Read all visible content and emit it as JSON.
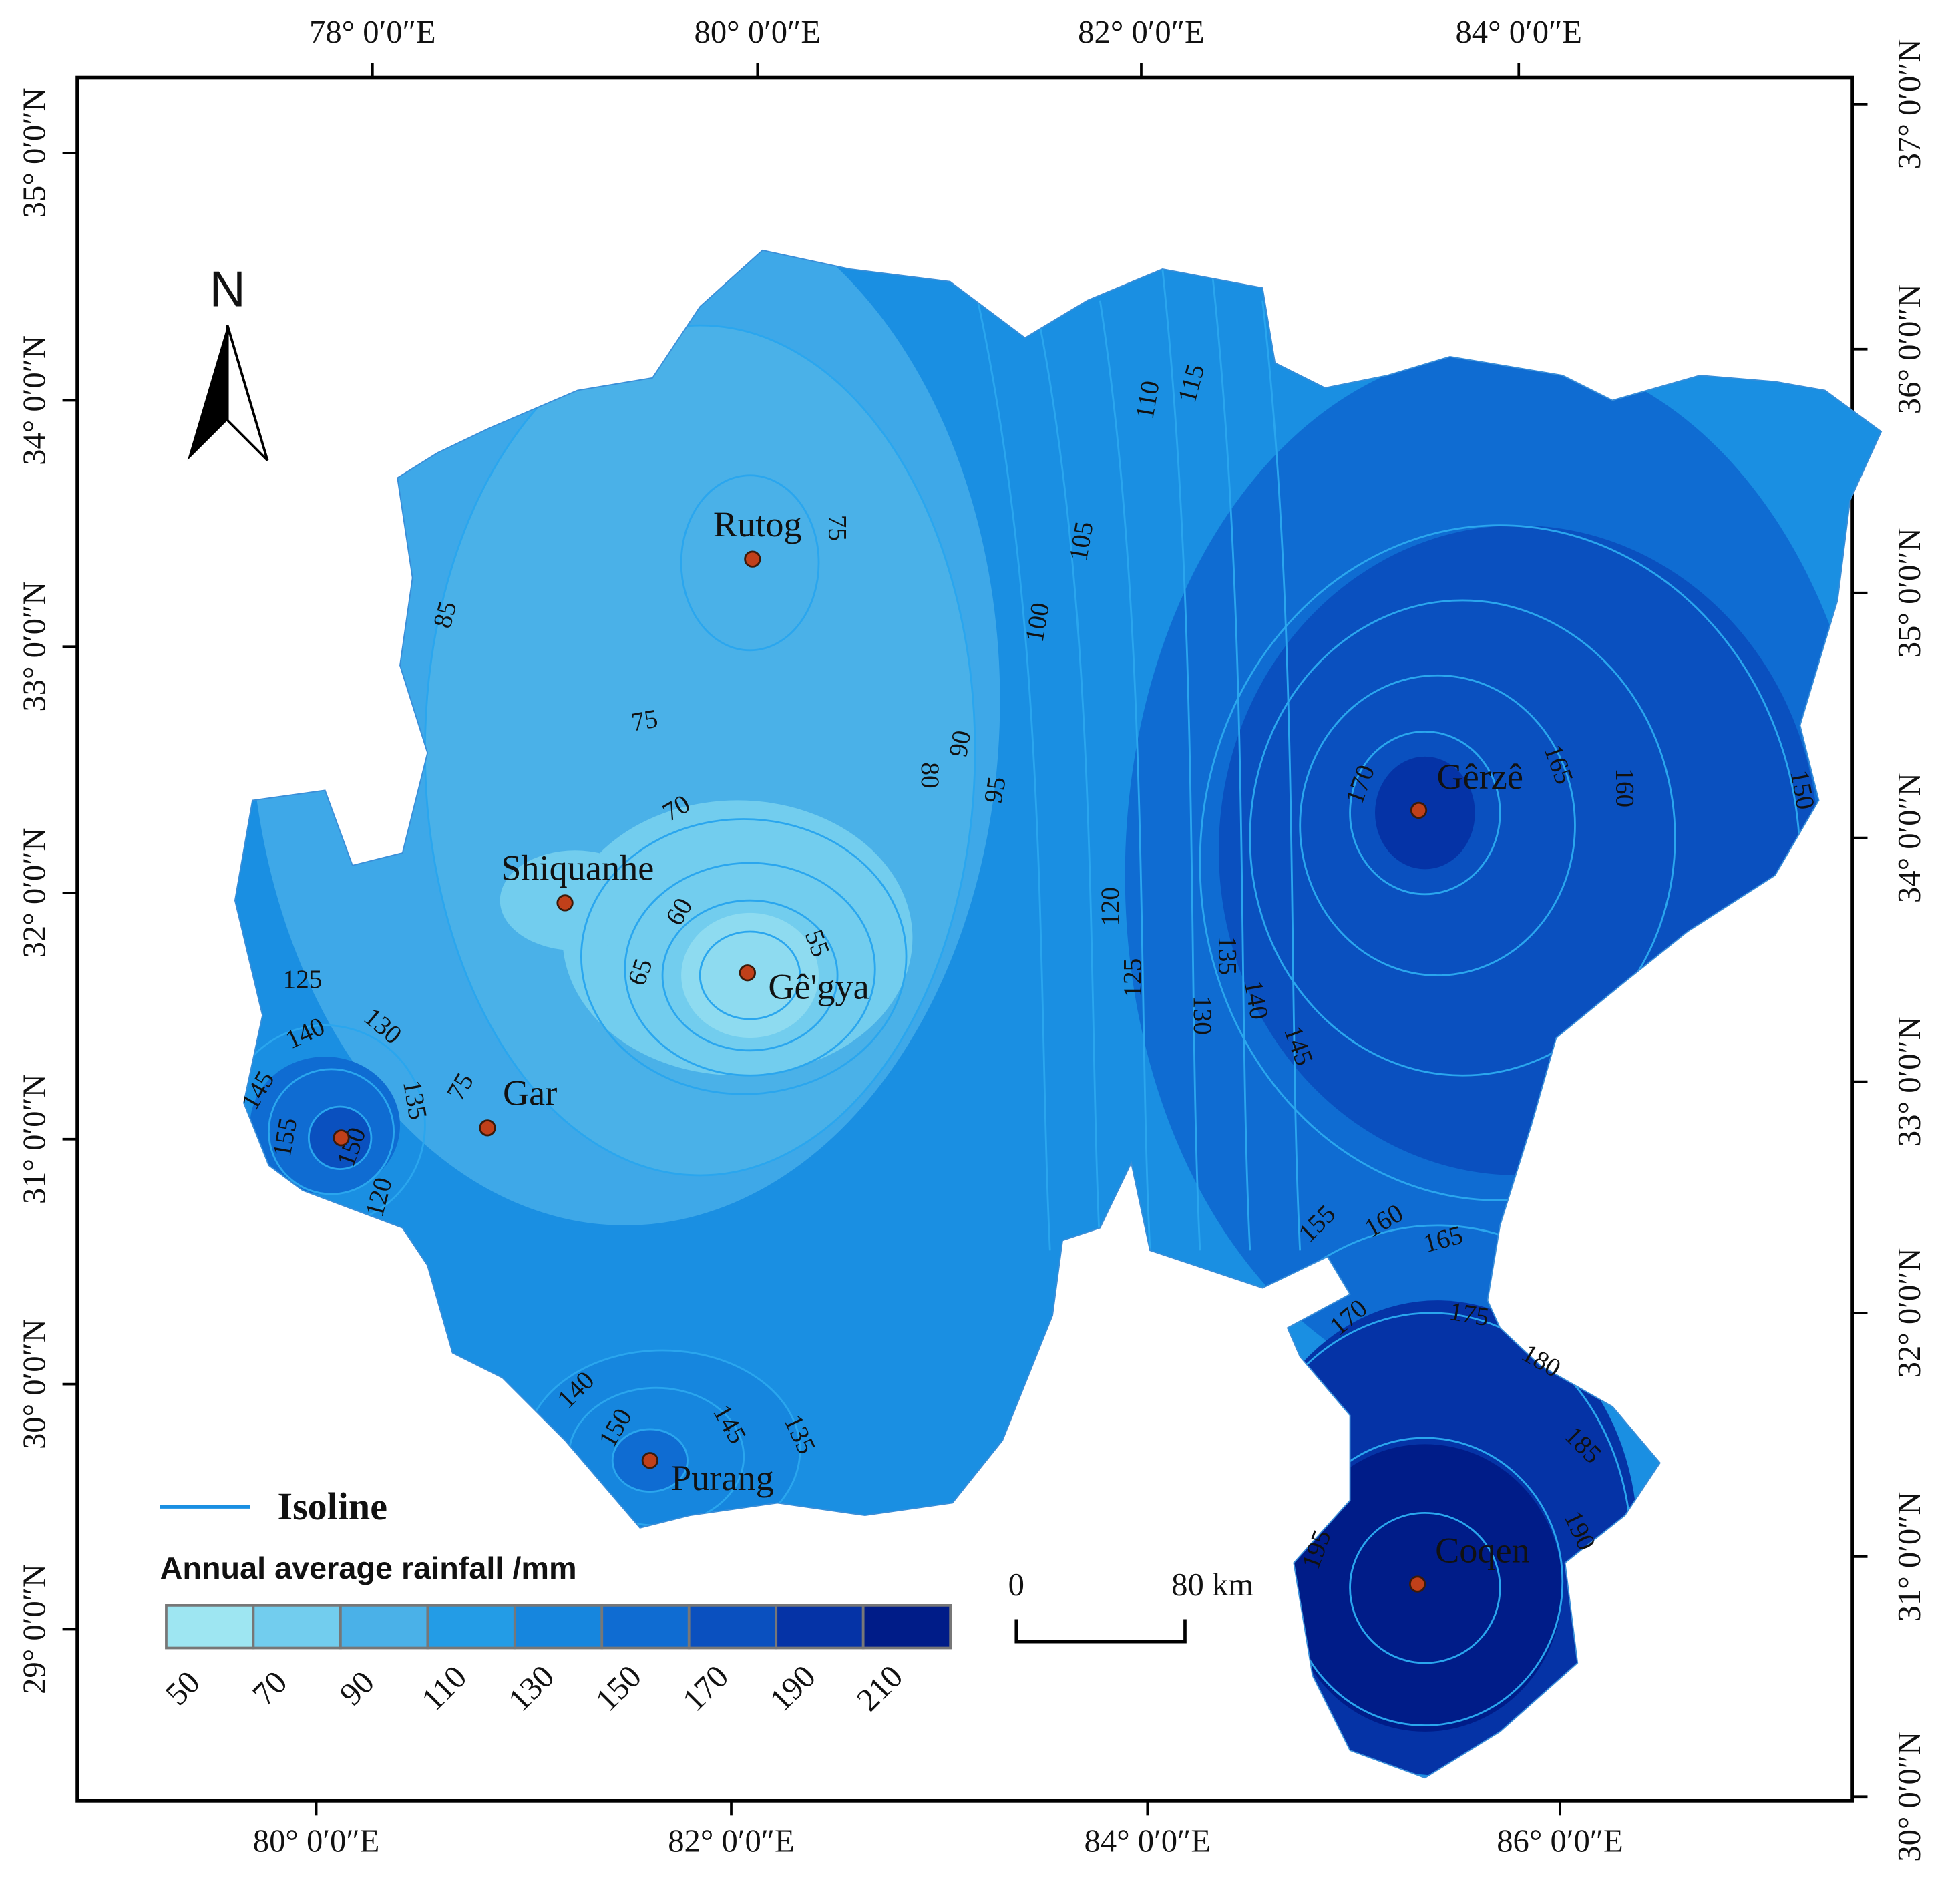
{
  "north": "N",
  "axes": {
    "top": [
      "78° 0′0″E",
      "80° 0′0″E",
      "82° 0′0″E",
      "84° 0′0″E"
    ],
    "bottom": [
      "80° 0′0″E",
      "82° 0′0″E",
      "84° 0′0″E",
      "86° 0′0″E"
    ],
    "left": [
      "35° 0′0″N",
      "34° 0′0″N",
      "33° 0′0″N",
      "32° 0′0″N",
      "31° 0′0″N",
      "30° 0′0″N",
      "29° 0′0″N"
    ],
    "right": [
      "37° 0′0″N",
      "36° 0′0″N",
      "35° 0′0″N",
      "34° 0′0″N",
      "33° 0′0″N",
      "32° 0′0″N",
      "31° 0′0″N",
      "30° 0′0″N"
    ]
  },
  "stations": [
    "Rutog",
    "Shiquanhe",
    "Gê'gya",
    "Gar",
    "Gêrzê",
    "Purang",
    "Coqen"
  ],
  "isoline_labels": [
    75,
    85,
    75,
    70,
    60,
    65,
    55,
    80,
    90,
    95,
    100,
    105,
    110,
    115,
    120,
    125,
    135,
    130,
    140,
    145,
    170,
    165,
    160,
    150,
    155,
    160,
    165,
    170,
    175,
    180,
    185,
    190,
    195,
    125,
    140,
    130,
    145,
    135,
    155,
    150,
    120,
    75,
    140,
    150,
    145,
    135
  ],
  "legend": {
    "isoline": "Isoline",
    "title": "Annual average rainfall  /mm",
    "ticks": [
      50,
      70,
      90,
      110,
      130,
      150,
      170,
      190,
      210
    ],
    "colors": [
      "#9ee6f2",
      "#72cdee",
      "#4ab1e8",
      "#239ce6",
      "#1686de",
      "#0f6cd2",
      "#0a50bf",
      "#0533a6",
      "#001c88"
    ]
  },
  "scale_bar": {
    "start": "0",
    "end": "80 km"
  }
}
